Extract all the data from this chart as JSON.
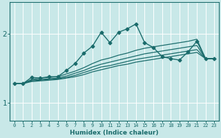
{
  "title": "",
  "xlabel": "Humidex (Indice chaleur)",
  "bg_color": "#c8e8e8",
  "grid_color": "#ffffff",
  "line_color": "#1a6b6b",
  "xlim": [
    -0.5,
    23.5
  ],
  "ylim": [
    0.75,
    2.45
  ],
  "yticks": [
    1,
    2
  ],
  "xticks": [
    0,
    1,
    2,
    3,
    4,
    5,
    6,
    7,
    8,
    9,
    10,
    11,
    12,
    13,
    14,
    15,
    16,
    17,
    18,
    19,
    20,
    21,
    22,
    23
  ],
  "lines": [
    {
      "x": [
        0,
        1,
        2,
        3,
        4,
        5,
        6,
        7,
        8,
        9,
        10,
        11,
        12,
        13,
        14,
        15,
        16,
        17,
        18,
        19,
        20,
        21,
        22,
        23
      ],
      "y": [
        1.28,
        1.28,
        1.37,
        1.36,
        1.38,
        1.38,
        1.47,
        1.57,
        1.72,
        1.82,
        2.02,
        1.87,
        2.02,
        2.07,
        2.14,
        1.87,
        1.8,
        1.67,
        1.64,
        1.62,
        1.74,
        1.89,
        1.64,
        1.64
      ],
      "marker": "D",
      "markersize": 2.5,
      "linewidth": 1.0,
      "has_marker": true
    },
    {
      "x": [
        0,
        1,
        2,
        3,
        4,
        5,
        6,
        7,
        8,
        9,
        10,
        11,
        12,
        13,
        14,
        15,
        16,
        17,
        18,
        19,
        20,
        21,
        22,
        23
      ],
      "y": [
        1.28,
        1.28,
        1.34,
        1.36,
        1.37,
        1.38,
        1.42,
        1.46,
        1.51,
        1.57,
        1.62,
        1.65,
        1.69,
        1.72,
        1.76,
        1.79,
        1.81,
        1.83,
        1.85,
        1.87,
        1.89,
        1.92,
        1.64,
        1.64
      ],
      "marker": null,
      "markersize": 0,
      "linewidth": 0.9,
      "has_marker": false
    },
    {
      "x": [
        0,
        1,
        2,
        3,
        4,
        5,
        6,
        7,
        8,
        9,
        10,
        11,
        12,
        13,
        14,
        15,
        16,
        17,
        18,
        19,
        20,
        21,
        22,
        23
      ],
      "y": [
        1.28,
        1.28,
        1.33,
        1.34,
        1.35,
        1.36,
        1.39,
        1.43,
        1.47,
        1.52,
        1.56,
        1.59,
        1.62,
        1.65,
        1.68,
        1.71,
        1.73,
        1.75,
        1.77,
        1.79,
        1.81,
        1.83,
        1.64,
        1.64
      ],
      "marker": null,
      "markersize": 0,
      "linewidth": 0.9,
      "has_marker": false
    },
    {
      "x": [
        0,
        1,
        2,
        3,
        4,
        5,
        6,
        7,
        8,
        9,
        10,
        11,
        12,
        13,
        14,
        15,
        16,
        17,
        18,
        19,
        20,
        21,
        22,
        23
      ],
      "y": [
        1.28,
        1.28,
        1.32,
        1.33,
        1.34,
        1.35,
        1.37,
        1.4,
        1.44,
        1.48,
        1.52,
        1.54,
        1.57,
        1.6,
        1.63,
        1.65,
        1.67,
        1.69,
        1.71,
        1.73,
        1.75,
        1.77,
        1.64,
        1.64
      ],
      "marker": null,
      "markersize": 0,
      "linewidth": 0.9,
      "has_marker": false
    },
    {
      "x": [
        0,
        1,
        2,
        3,
        4,
        5,
        6,
        7,
        8,
        9,
        10,
        11,
        12,
        13,
        14,
        15,
        16,
        17,
        18,
        19,
        20,
        21,
        22,
        23
      ],
      "y": [
        1.28,
        1.28,
        1.31,
        1.32,
        1.33,
        1.34,
        1.36,
        1.38,
        1.41,
        1.45,
        1.48,
        1.51,
        1.54,
        1.56,
        1.59,
        1.61,
        1.63,
        1.65,
        1.67,
        1.69,
        1.71,
        1.73,
        1.64,
        1.64
      ],
      "marker": null,
      "markersize": 0,
      "linewidth": 0.9,
      "has_marker": false
    }
  ]
}
